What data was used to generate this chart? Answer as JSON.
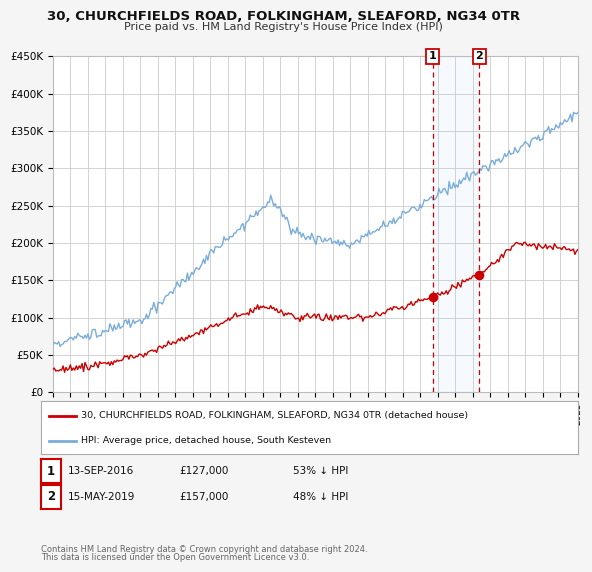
{
  "title": "30, CHURCHFIELDS ROAD, FOLKINGHAM, SLEAFORD, NG34 0TR",
  "subtitle": "Price paid vs. HM Land Registry's House Price Index (HPI)",
  "ylim": [
    0,
    450000
  ],
  "yticks": [
    0,
    50000,
    100000,
    150000,
    200000,
    250000,
    300000,
    350000,
    400000,
    450000
  ],
  "ytick_labels": [
    "£0",
    "£50K",
    "£100K",
    "£150K",
    "£200K",
    "£250K",
    "£300K",
    "£350K",
    "£400K",
    "£450K"
  ],
  "background_color": "#f5f5f5",
  "plot_bg_color": "#ffffff",
  "grid_color": "#cccccc",
  "hpi_color": "#7aaddb",
  "price_color": "#cc0000",
  "sale1_year": 2016.7,
  "sale1_price": 127000,
  "sale2_year": 2019.37,
  "sale2_price": 157000,
  "legend_line1": "30, CHURCHFIELDS ROAD, FOLKINGHAM, SLEAFORD, NG34 0TR (detached house)",
  "legend_line2": "HPI: Average price, detached house, South Kesteven",
  "sale1_date": "13-SEP-2016",
  "sale1_amount": "£127,000",
  "sale1_pct": "53% ↓ HPI",
  "sale2_date": "15-MAY-2019",
  "sale2_amount": "£157,000",
  "sale2_pct": "48% ↓ HPI",
  "footnote1": "Contains HM Land Registry data © Crown copyright and database right 2024.",
  "footnote2": "This data is licensed under the Open Government Licence v3.0."
}
